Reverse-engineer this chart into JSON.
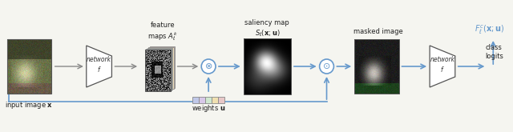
{
  "bg_color": "#f5f5f0",
  "arrow_color_gray": "#888888",
  "arrow_color_blue": "#6699cc",
  "box_edge_color": "#555555",
  "text_color": "#222222",
  "title_text": "input image \\mathbf{x}",
  "feature_maps_label": "feature\nmaps $A_{\\ell}^{k}$",
  "saliency_label": "saliency map\n$S_{\\ell}(\\mathbf{x}; \\mathbf{u})$",
  "masked_label": "masked image",
  "weights_label": "weights $\\mathbf{u}$",
  "class_logits_label": "class\nlogits",
  "F_label": "$F_{\\ell}^{c}(\\mathbf{x}; \\mathbf{u})$",
  "network_label": "network\n$f$",
  "network2_label": "network\n$f$",
  "layer_colors": [
    "#f0c8c8",
    "#f0e0c0",
    "#d0e8d0",
    "#c8d8f0",
    "#e8e0f0"
  ],
  "weight_colors": [
    "#c0c8e8",
    "#d8c8e8",
    "#d0e8d0",
    "#f0e0b0",
    "#e8c8c8"
  ]
}
